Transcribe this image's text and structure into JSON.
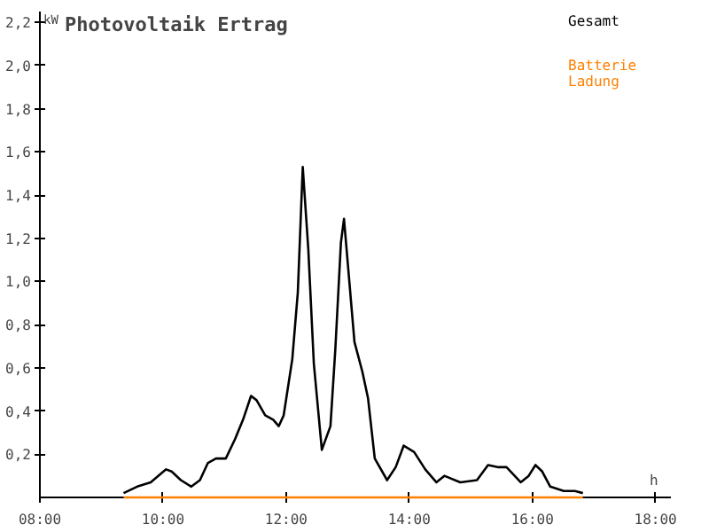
{
  "chart_data": {
    "type": "line",
    "title": "Photovoltaik Ertrag",
    "xlabel": "h",
    "ylabel": "kW",
    "xlim": [
      8,
      18.25
    ],
    "ylim": [
      0,
      2.25
    ],
    "xticks": [
      {
        "value": 8,
        "label": "08:00"
      },
      {
        "value": 10,
        "label": "10:00"
      },
      {
        "value": 12,
        "label": "12:00"
      },
      {
        "value": 14,
        "label": "14:00"
      },
      {
        "value": 16,
        "label": "16:00"
      },
      {
        "value": 18,
        "label": "18:00"
      }
    ],
    "yticks": [
      {
        "value": 0.2,
        "label": "0,2"
      },
      {
        "value": 0.4,
        "label": "0,4"
      },
      {
        "value": 0.6,
        "label": "0,6"
      },
      {
        "value": 0.8,
        "label": "0,8"
      },
      {
        "value": 1.0,
        "label": "1,0"
      },
      {
        "value": 1.2,
        "label": "1,2"
      },
      {
        "value": 1.4,
        "label": "1,4"
      },
      {
        "value": 1.6,
        "label": "1,6"
      },
      {
        "value": 1.8,
        "label": "1,8"
      },
      {
        "value": 2.0,
        "label": "2,0"
      },
      {
        "value": 2.2,
        "label": "2,2"
      }
    ],
    "grid": false,
    "legend": "top right",
    "marker": "none",
    "line_style": "solid",
    "series": [
      {
        "name": "Gesamt",
        "color": "#000000",
        "x": [
          9.36,
          9.58,
          9.8,
          10.05,
          10.14,
          10.29,
          10.46,
          10.6,
          10.73,
          10.86,
          11.02,
          11.17,
          11.3,
          11.43,
          11.52,
          11.66,
          11.79,
          11.88,
          11.96,
          12.1,
          12.19,
          12.27,
          12.36,
          12.45,
          12.58,
          12.72,
          12.8,
          12.89,
          12.94,
          13.11,
          13.24,
          13.33,
          13.44,
          13.64,
          13.78,
          13.91,
          14.08,
          14.26,
          14.44,
          14.57,
          14.83,
          15.1,
          15.28,
          15.45,
          15.58,
          15.81,
          15.94,
          16.05,
          16.16,
          16.29,
          16.51,
          16.69,
          16.82
        ],
        "values": [
          0.02,
          0.05,
          0.07,
          0.13,
          0.12,
          0.08,
          0.05,
          0.08,
          0.16,
          0.18,
          0.18,
          0.27,
          0.36,
          0.47,
          0.45,
          0.38,
          0.36,
          0.33,
          0.38,
          0.64,
          0.95,
          1.53,
          1.15,
          0.62,
          0.22,
          0.33,
          0.69,
          1.18,
          1.29,
          0.72,
          0.58,
          0.46,
          0.18,
          0.08,
          0.14,
          0.24,
          0.21,
          0.13,
          0.07,
          0.1,
          0.07,
          0.08,
          0.15,
          0.14,
          0.14,
          0.07,
          0.1,
          0.15,
          0.12,
          0.05,
          0.03,
          0.03,
          0.02
        ]
      },
      {
        "name": "Batterie Ladung",
        "color": "#ff8000",
        "x": [
          9.36,
          16.82
        ],
        "values": [
          0,
          0
        ]
      }
    ]
  }
}
